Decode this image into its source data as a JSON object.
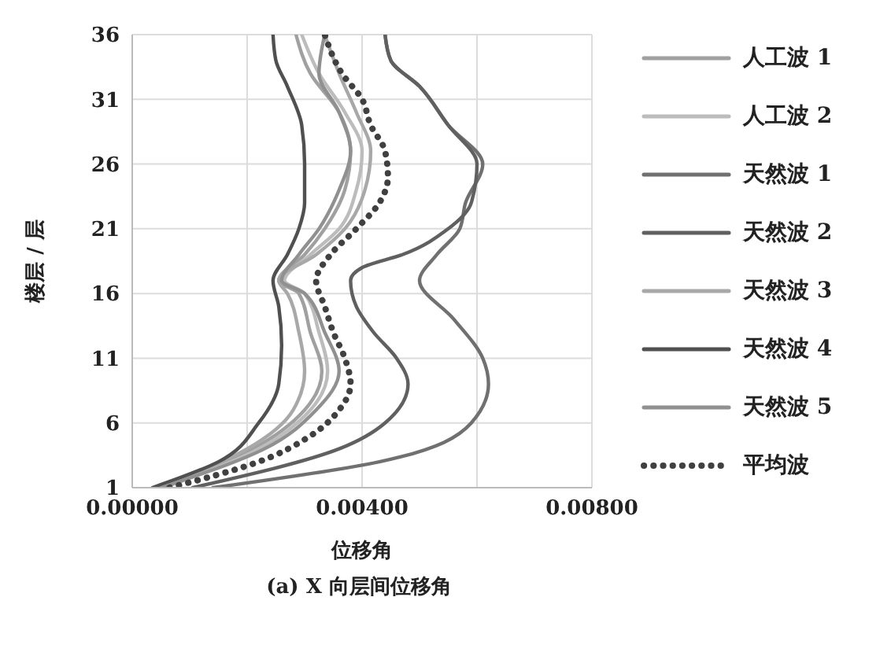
{
  "chart_data": {
    "type": "line",
    "orientation": "horizontal",
    "title": "(a)  X 向层间位移角",
    "xlabel": "位移角",
    "ylabel": "楼层 / 层",
    "xlim": [
      0,
      0.008
    ],
    "xticks": [
      {
        "value": 0,
        "label": "0.00000"
      },
      {
        "value": 0.002,
        "label": null
      },
      {
        "value": 0.004,
        "label": "0.00400"
      },
      {
        "value": 0.006,
        "label": null
      },
      {
        "value": 0.008,
        "label": "0.00800"
      }
    ],
    "ylim": [
      1,
      36
    ],
    "yticks": [
      1,
      6,
      11,
      16,
      21,
      26,
      31,
      36
    ],
    "grid": true,
    "legend": "right",
    "marker": "none",
    "series": [
      {
        "name": "人工波 1",
        "color": "#a0a0a0",
        "x": [
          1,
          4,
          7,
          10,
          13,
          16,
          17,
          19,
          21,
          24,
          27,
          30,
          33,
          36
        ],
        "values": [
          0.0005,
          0.0021,
          0.003,
          0.0033,
          0.0031,
          0.0029,
          0.00255,
          0.003,
          0.00335,
          0.0037,
          0.0038,
          0.0036,
          0.0031,
          0.00285
        ]
      },
      {
        "name": "人工波 2",
        "color": "#bcbcbc",
        "x": [
          1,
          4,
          7,
          10,
          13,
          16,
          17,
          19,
          21,
          24,
          27,
          30,
          33,
          36
        ],
        "values": [
          0.00055,
          0.0022,
          0.0031,
          0.0034,
          0.00325,
          0.003,
          0.00265,
          0.0031,
          0.0036,
          0.0039,
          0.004,
          0.0037,
          0.00325,
          0.00295
        ]
      },
      {
        "name": "天然波 1",
        "color": "#707070",
        "x": [
          1,
          3,
          6,
          9,
          11,
          14,
          17,
          19,
          21,
          23,
          26,
          29,
          32,
          34,
          36
        ],
        "values": [
          0.0014,
          0.0043,
          0.0059,
          0.0062,
          0.0061,
          0.0056,
          0.005,
          0.0053,
          0.0057,
          0.0058,
          0.0061,
          0.0055,
          0.005,
          0.0045,
          0.0044
        ]
      },
      {
        "name": "天然波 2",
        "color": "#606060",
        "x": [
          1,
          4,
          6,
          9,
          11,
          13,
          15,
          17,
          18,
          19,
          21,
          23,
          26,
          29,
          32,
          34,
          36
        ],
        "values": [
          0.00105,
          0.0036,
          0.0044,
          0.0048,
          0.0046,
          0.0042,
          0.0039,
          0.0038,
          0.004,
          0.0047,
          0.0055,
          0.0059,
          0.006,
          0.0055,
          0.005,
          0.0045,
          0.0044
        ]
      },
      {
        "name": "天然波 3",
        "color": "#a8a8a8",
        "x": [
          1,
          4,
          7,
          10,
          13,
          16,
          17,
          19,
          21,
          24,
          27,
          30,
          33,
          36
        ],
        "values": [
          0.00045,
          0.002,
          0.0028,
          0.003,
          0.0029,
          0.0027,
          0.00255,
          0.0032,
          0.0037,
          0.00405,
          0.00415,
          0.0039,
          0.0036,
          0.00335
        ]
      },
      {
        "name": "天然波 4",
        "color": "#505050",
        "x": [
          1,
          3,
          6,
          9,
          12,
          15,
          17,
          19,
          21,
          23,
          26,
          29,
          32,
          34,
          36
        ],
        "values": [
          0.00035,
          0.0015,
          0.0022,
          0.00255,
          0.0026,
          0.00255,
          0.00245,
          0.0027,
          0.0029,
          0.003,
          0.003,
          0.00295,
          0.0027,
          0.0025,
          0.00245
        ]
      },
      {
        "name": "天然波 5",
        "color": "#909090",
        "x": [
          1,
          4,
          7,
          10,
          13,
          16,
          17,
          19,
          21,
          24,
          27,
          30,
          33,
          36
        ],
        "values": [
          0.0005,
          0.0023,
          0.0032,
          0.0036,
          0.00335,
          0.003,
          0.0026,
          0.0029,
          0.00325,
          0.0036,
          0.0038,
          0.0036,
          0.00325,
          0.00335
        ]
      },
      {
        "name": "平均波",
        "color": "#404040",
        "line_style": "dotted",
        "x": [
          1,
          3,
          5,
          7,
          9,
          11,
          13,
          15,
          17,
          19,
          21,
          23,
          25,
          27,
          29,
          31,
          33,
          36
        ],
        "values": [
          0.00065,
          0.0022,
          0.0031,
          0.0036,
          0.0038,
          0.0037,
          0.0035,
          0.00335,
          0.0032,
          0.00345,
          0.0039,
          0.0043,
          0.00445,
          0.0044,
          0.00415,
          0.004,
          0.00365,
          0.00335
        ]
      }
    ]
  }
}
